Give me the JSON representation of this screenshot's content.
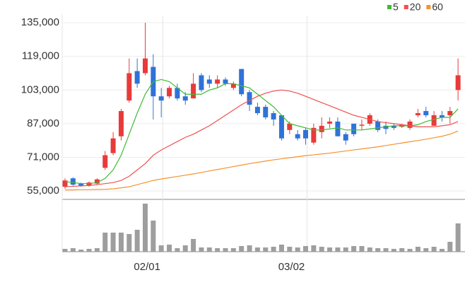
{
  "chart_data": {
    "type": "candlestick",
    "categories": [
      null,
      null,
      null,
      null,
      null,
      null,
      null,
      null,
      null,
      null,
      null,
      null,
      "02/01",
      null,
      null,
      null,
      null,
      null,
      null,
      null,
      null,
      null,
      null,
      null,
      null,
      null,
      null,
      null,
      null,
      null,
      "03/02",
      null,
      null,
      null,
      null,
      null,
      null,
      null,
      null,
      null,
      null,
      null,
      null,
      null,
      null,
      null,
      null,
      null,
      null,
      null
    ],
    "open": [
      57000,
      61000,
      58500,
      57500,
      58500,
      66000,
      73000,
      81000,
      98000,
      112000,
      111000,
      114000,
      100000,
      100000,
      104000,
      100000,
      99000,
      110000,
      108000,
      106000,
      108000,
      104000,
      113000,
      102000,
      95000,
      95000,
      92000,
      91000,
      84000,
      82000,
      84000,
      78000,
      83000,
      87000,
      88000,
      82000,
      87000,
      86000,
      87000,
      88000,
      86000,
      86000,
      85500,
      85000,
      91000,
      93000,
      86000,
      91000,
      91000,
      103000
    ],
    "high": [
      61000,
      61500,
      59000,
      59500,
      61000,
      74000,
      83000,
      94000,
      118000,
      118000,
      135000,
      120000,
      104000,
      105000,
      106000,
      102000,
      111000,
      111000,
      110000,
      110000,
      109000,
      107000,
      113000,
      103000,
      97000,
      96000,
      93000,
      91000,
      88000,
      84000,
      85000,
      87000,
      90000,
      90000,
      90000,
      83000,
      87000,
      89000,
      92000,
      89000,
      88000,
      87000,
      87000,
      89000,
      94000,
      95000,
      93000,
      93000,
      95000,
      118000
    ],
    "low": [
      56000,
      57500,
      57000,
      57000,
      58000,
      65000,
      72000,
      79000,
      97000,
      104000,
      110000,
      89000,
      90000,
      99000,
      98000,
      96000,
      99000,
      102000,
      104000,
      104000,
      105000,
      103000,
      100000,
      93000,
      91000,
      89000,
      86000,
      79000,
      82000,
      79000,
      77000,
      77000,
      80000,
      85000,
      81000,
      77000,
      81000,
      84000,
      86000,
      83000,
      82000,
      84000,
      85000,
      84000,
      90000,
      90000,
      86000,
      88000,
      87000,
      98000
    ],
    "close": [
      60000,
      58000,
      57500,
      59000,
      60500,
      72000,
      80000,
      93000,
      111000,
      106000,
      118000,
      100000,
      98000,
      104000,
      99000,
      98000,
      106000,
      103000,
      106000,
      108000,
      106000,
      106000,
      101000,
      96000,
      92000,
      90000,
      89000,
      80000,
      87000,
      80000,
      80000,
      85000,
      86000,
      88000,
      81000,
      79000,
      82000,
      86500,
      91000,
      84000,
      84500,
      85000,
      86500,
      88000,
      92000,
      91000,
      91000,
      90000,
      93000,
      110000
    ],
    "volume": [
      4,
      5,
      3,
      4,
      5,
      27,
      27,
      27,
      25,
      31,
      68,
      44,
      9,
      10,
      5,
      9,
      18,
      6,
      6,
      5,
      5,
      5,
      8,
      9,
      6,
      6,
      7,
      10,
      7,
      6,
      8,
      9,
      7,
      6,
      6,
      6,
      8,
      8,
      6,
      5,
      5,
      4,
      5,
      4,
      7,
      5,
      7,
      4,
      14,
      40
    ],
    "up_color": "#e83a3a",
    "down_color": "#2f72d8",
    "volume_color": "#9e9e9e",
    "series": [
      {
        "name": "5",
        "color": "#3dbb32",
        "values": [
          59500,
          59000,
          58500,
          58500,
          59000,
          61000,
          65000,
          72000,
          82000,
          92000,
          101000,
          107000,
          108000,
          107000,
          104000,
          101000,
          101000,
          101000,
          103000,
          104000,
          106000,
          106000,
          105000,
          104000,
          101000,
          98000,
          95000,
          91000,
          87000,
          86000,
          85000,
          84000,
          84000,
          84500,
          85000,
          84000,
          84000,
          84000,
          84500,
          85000,
          85500,
          86000,
          86000,
          86000,
          86500,
          88000,
          89000,
          90000,
          90000,
          94000
        ]
      },
      {
        "name": "20",
        "color": "#f05050",
        "values": [
          57000,
          57200,
          57400,
          57600,
          58000,
          58500,
          59000,
          60000,
          62000,
          65000,
          68000,
          72000,
          74500,
          76500,
          78500,
          80500,
          82000,
          84000,
          86000,
          88500,
          91000,
          93500,
          96000,
          98000,
          100000,
          101500,
          102500,
          103000,
          102500,
          101500,
          100000,
          98500,
          97000,
          95500,
          94000,
          92500,
          91000,
          90000,
          89000,
          88000,
          87500,
          87000,
          86500,
          86000,
          85500,
          85500,
          85500,
          86000,
          86500,
          88000
        ]
      },
      {
        "name": "60",
        "color": "#f5922f",
        "values": [
          55500,
          55500,
          55600,
          55600,
          55700,
          55800,
          56000,
          56500,
          57000,
          58000,
          59000,
          60000,
          60700,
          61300,
          61900,
          62500,
          63100,
          63800,
          64500,
          65200,
          65900,
          66600,
          67300,
          68000,
          68600,
          69200,
          69800,
          70300,
          70800,
          71300,
          71800,
          72200,
          72600,
          73000,
          73500,
          74000,
          74500,
          75000,
          75500,
          76000,
          76600,
          77200,
          77800,
          78400,
          79000,
          79600,
          80300,
          81000,
          82000,
          83500
        ]
      }
    ],
    "ylim": [
      51000,
      138400
    ],
    "yticks": [
      {
        "value": 55000,
        "label": "55,000"
      },
      {
        "value": 71000,
        "label": "71,000"
      },
      {
        "value": 87000,
        "label": "87,000"
      },
      {
        "value": 103000,
        "label": "103,000"
      },
      {
        "value": 119000,
        "label": "119,000"
      },
      {
        "value": 135000,
        "label": "135,000"
      }
    ],
    "grid": true,
    "legend": "top-right"
  }
}
